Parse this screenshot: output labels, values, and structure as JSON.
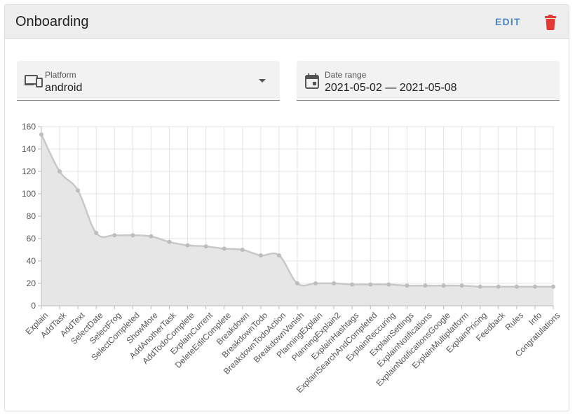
{
  "header": {
    "title": "Onboarding",
    "edit_label": "EDIT",
    "delete_icon": "trash-icon",
    "accent_color": "#4a86c8",
    "danger_color": "#e53935"
  },
  "filters": {
    "platform": {
      "label": "Platform",
      "value": "android",
      "icon": "devices-icon"
    },
    "date_range": {
      "label": "Date range",
      "value": "2021-05-02 — 2021-05-08",
      "icon": "calendar-icon"
    }
  },
  "chart_data": {
    "type": "area",
    "title": "",
    "xlabel": "",
    "ylabel": "",
    "ylim": [
      0,
      160
    ],
    "yticks": [
      0,
      20,
      40,
      60,
      80,
      100,
      120,
      140,
      160
    ],
    "grid": true,
    "fill_color": "#e6e6e6",
    "line_color": "#c8c8c8",
    "categories": [
      "Explain",
      "AddTask",
      "AddText",
      "SelectDate",
      "SelectFrog",
      "SelectCompleted",
      "ShowMore",
      "AddAnotherTask",
      "AddTodoComplete",
      "ExplainCurrent",
      "DeleteEditComplete",
      "Breakdown",
      "BreakdownTodo",
      "BreakdownTodoAction",
      "BreakdownVanish",
      "PlanningExplain",
      "PlanningExplain2",
      "ExplainHashtags",
      "ExplainSearchAndCompleted",
      "ExplainReccuring",
      "ExplainSettings",
      "ExplainNotifications",
      "ExplainNotificationsGoogle",
      "ExplainMultiplatform",
      "ExplainPricing",
      "Feedback",
      "Rules",
      "Info",
      "Congratulations"
    ],
    "values": [
      153,
      120,
      103,
      65,
      63,
      63,
      62,
      57,
      54,
      53,
      51,
      50,
      45,
      45,
      20,
      20,
      20,
      19,
      19,
      19,
      18,
      18,
      18,
      18,
      17,
      17,
      17,
      17,
      17
    ]
  }
}
